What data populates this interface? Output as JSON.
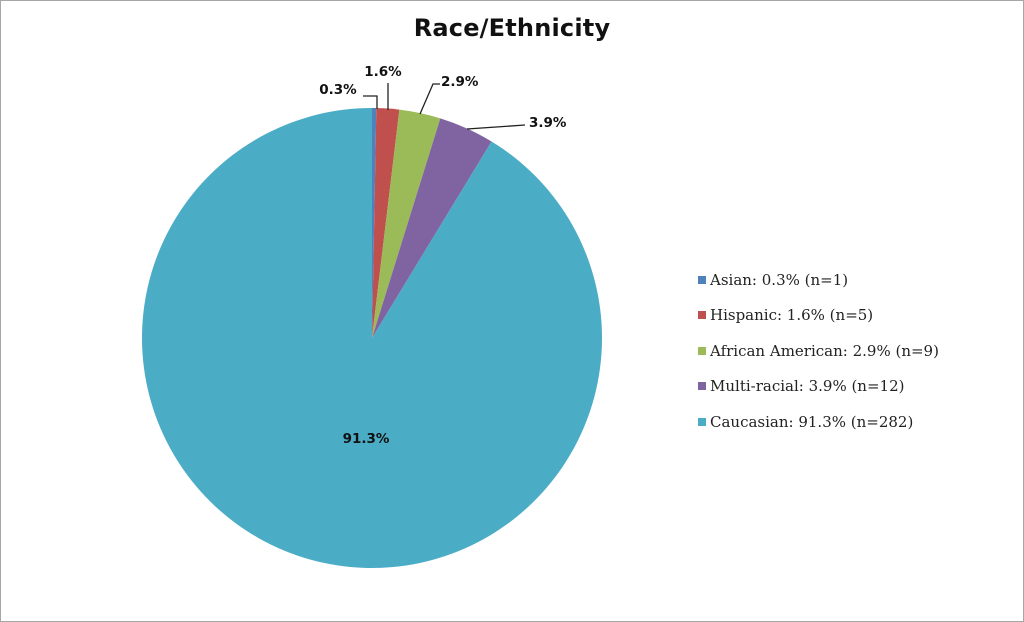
{
  "chart_data": {
    "type": "pie",
    "title": "Race/Ethnicity",
    "categories": [
      "Asian",
      "Hispanic",
      "African American",
      "Multi-racial",
      "Caucasian"
    ],
    "values": [
      0.3,
      1.6,
      2.9,
      3.9,
      91.3
    ],
    "counts": [
      1,
      5,
      9,
      12,
      282
    ],
    "data_labels": [
      "0.3%",
      "1.6%",
      "2.9%",
      "3.9%",
      "91.3%"
    ],
    "colors": [
      "#4F81BD",
      "#C0504D",
      "#9BBB59",
      "#8064A2",
      "#4BACC6"
    ],
    "legend": [
      "Asian: 0.3% (n=1)",
      "Hispanic: 1.6% (n=5)",
      "African American: 2.9% (n=9)",
      "Multi-racial: 3.9% (n=12)",
      "Caucasian: 91.3% (n=282)"
    ],
    "legend_position": "right",
    "start_angle_deg": 0,
    "direction": "clockwise"
  }
}
